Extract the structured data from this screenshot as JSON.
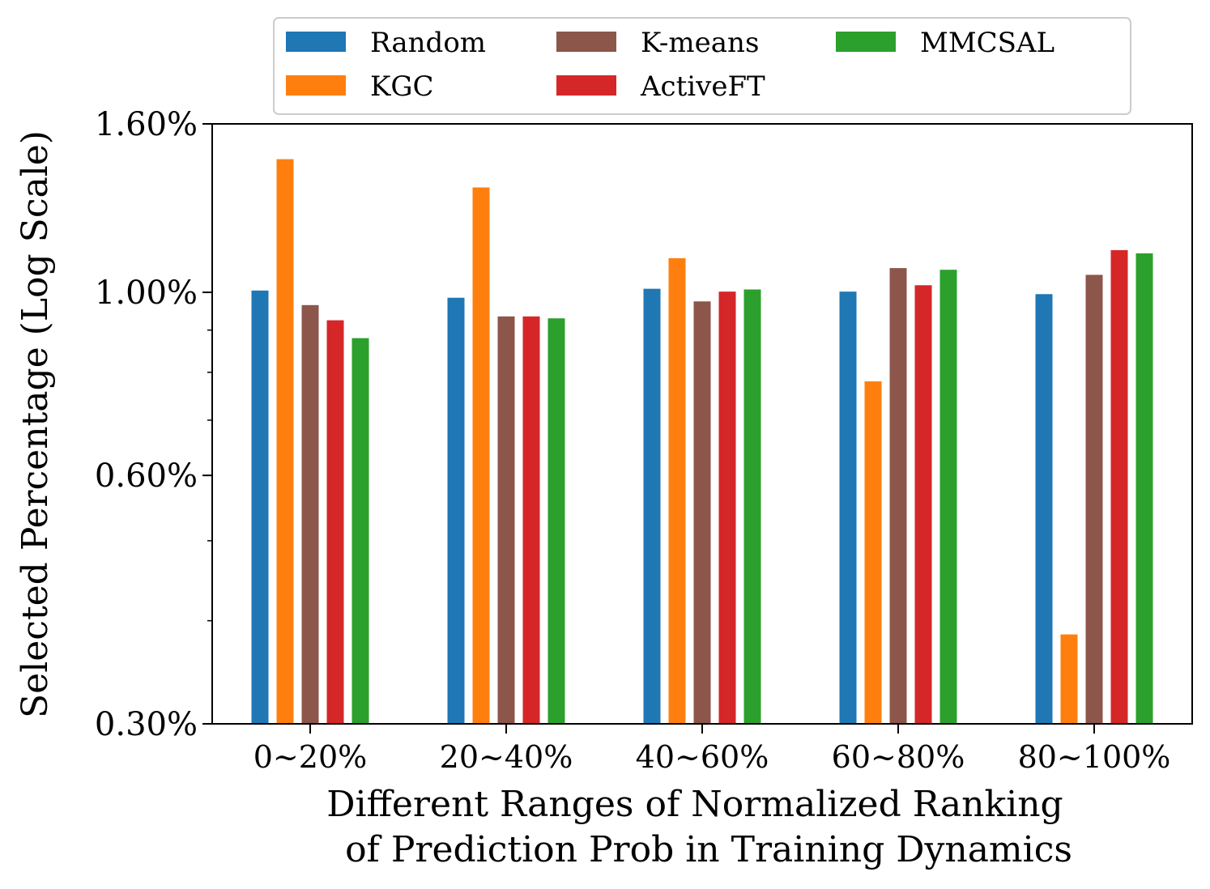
{
  "chart_data": {
    "type": "bar",
    "title": "",
    "xlabel_lines": [
      "Different Ranges of Normalized Ranking",
      "of Prediction Prob in Training Dynamics"
    ],
    "ylabel": "Selected Percentage (Log Scale)",
    "yscale": "log",
    "ylim": [
      0.3,
      1.6
    ],
    "yticks": [
      0.3,
      0.6,
      1.0,
      1.6
    ],
    "ytick_labels": [
      "0.30%",
      "0.60%",
      "1.00%",
      "1.60%"
    ],
    "minor_yticks": [
      0.4,
      0.5,
      0.7,
      0.8,
      0.9
    ],
    "categories": [
      "0~20%",
      "20~40%",
      "40~60%",
      "60~80%",
      "80~100%"
    ],
    "series": [
      {
        "name": "Random",
        "color": "#1f77b4",
        "values": [
          1.005,
          0.985,
          1.01,
          1.002,
          0.995
        ]
      },
      {
        "name": "KGC",
        "color": "#ff7f0e",
        "values": [
          1.45,
          1.34,
          1.1,
          0.78,
          0.385
        ]
      },
      {
        "name": "K-means",
        "color": "#8c564b",
        "values": [
          0.965,
          0.935,
          0.975,
          1.07,
          1.05
        ]
      },
      {
        "name": "ActiveFT",
        "color": "#d62728",
        "values": [
          0.925,
          0.935,
          1.002,
          1.02,
          1.125
        ]
      },
      {
        "name": "MMCSAL",
        "color": "#2ca02c",
        "values": [
          0.88,
          0.93,
          1.008,
          1.065,
          1.115
        ]
      }
    ],
    "legend_position": "top-center",
    "legend_columns": 3,
    "grid": false
  }
}
